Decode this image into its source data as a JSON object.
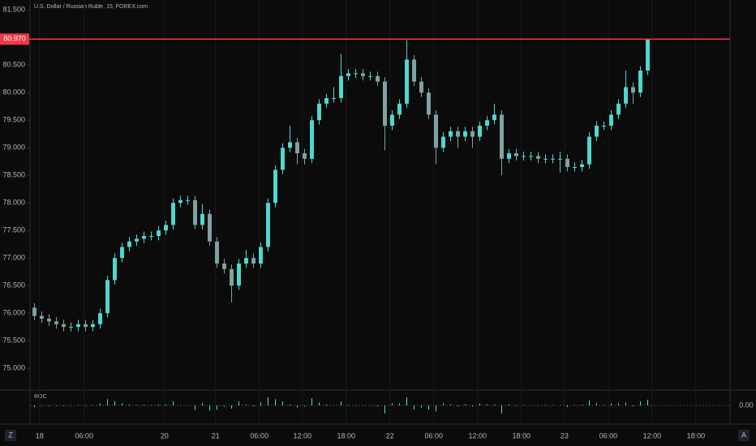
{
  "chart_data": {
    "type": "candlestick",
    "title": "U.S. Dollar / Russian Ruble, 15, FOREX.com",
    "open": [
      76.1,
      75.95,
      75.9,
      75.85,
      75.8,
      75.75,
      75.75,
      75.8,
      75.75,
      75.8,
      76.0,
      76.6,
      77.0,
      77.2,
      77.3,
      77.35,
      77.4,
      77.4,
      77.5,
      77.6,
      78.0,
      78.05,
      78.05,
      77.6,
      77.8,
      77.3,
      76.9,
      76.8,
      76.5,
      76.9,
      77.0,
      76.9,
      77.2,
      78.0,
      78.6,
      79.0,
      79.1,
      78.9,
      78.8,
      79.5,
      79.8,
      79.9,
      79.9,
      80.3,
      80.35,
      80.35,
      80.3,
      80.3,
      80.2,
      79.4,
      79.6,
      79.8,
      80.6,
      80.2,
      80.0,
      79.6,
      79.0,
      79.2,
      79.3,
      79.2,
      79.3,
      79.2,
      79.4,
      79.5,
      79.6,
      78.8,
      78.9,
      78.85,
      78.85,
      78.85,
      78.8,
      78.8,
      78.8,
      78.8,
      78.65,
      78.65,
      78.7,
      79.2,
      79.4,
      79.4,
      79.6,
      79.8,
      80.1,
      80.0,
      80.4
    ],
    "high": [
      76.18,
      76.03,
      75.98,
      75.93,
      75.88,
      75.83,
      75.88,
      75.88,
      75.88,
      76.08,
      76.68,
      77.08,
      77.28,
      77.38,
      77.43,
      77.48,
      77.48,
      77.58,
      77.68,
      78.08,
      78.13,
      78.13,
      78.13,
      77.98,
      77.88,
      77.38,
      76.98,
      76.88,
      76.98,
      77.15,
      77.08,
      77.28,
      78.08,
      78.68,
      79.08,
      79.4,
      79.18,
      78.98,
      79.58,
      79.88,
      79.98,
      80.1,
      80.7,
      80.43,
      80.43,
      80.43,
      80.38,
      80.38,
      80.28,
      79.68,
      79.88,
      80.95,
      80.68,
      80.28,
      80.08,
      79.68,
      79.28,
      79.38,
      79.38,
      79.38,
      79.38,
      79.48,
      79.58,
      79.8,
      79.68,
      78.98,
      78.98,
      78.93,
      78.93,
      78.93,
      78.88,
      78.88,
      78.93,
      78.88,
      78.73,
      78.78,
      79.28,
      79.48,
      79.48,
      79.68,
      79.88,
      80.4,
      80.18,
      80.48,
      80.97
    ],
    "low": [
      75.87,
      75.82,
      75.77,
      75.72,
      75.67,
      75.67,
      75.67,
      75.67,
      75.67,
      75.72,
      75.92,
      76.52,
      76.92,
      77.12,
      77.22,
      77.27,
      77.32,
      77.32,
      77.42,
      77.52,
      77.92,
      77.97,
      77.52,
      77.52,
      77.22,
      76.82,
      76.72,
      76.2,
      76.42,
      76.82,
      76.82,
      76.82,
      77.12,
      77.92,
      78.52,
      78.92,
      78.7,
      78.7,
      78.72,
      79.42,
      79.72,
      79.82,
      79.82,
      80.22,
      80.27,
      80.22,
      80.22,
      80.12,
      78.95,
      79.32,
      79.52,
      79.72,
      80.12,
      79.92,
      79.52,
      78.7,
      78.92,
      79.12,
      79.0,
      79.12,
      79.0,
      79.12,
      79.32,
      79.42,
      78.5,
      78.72,
      78.77,
      78.77,
      78.77,
      78.72,
      78.72,
      78.72,
      78.55,
      78.57,
      78.57,
      78.57,
      78.62,
      79.12,
      79.32,
      79.32,
      79.52,
      79.72,
      79.8,
      79.92,
      80.32
    ],
    "close": [
      75.95,
      75.9,
      75.85,
      75.8,
      75.75,
      75.75,
      75.8,
      75.75,
      75.8,
      76.0,
      76.6,
      77.0,
      77.2,
      77.3,
      77.35,
      77.4,
      77.4,
      77.5,
      77.6,
      78.0,
      78.05,
      78.05,
      77.6,
      77.8,
      77.3,
      76.9,
      76.8,
      76.5,
      76.9,
      77.0,
      76.9,
      77.2,
      78.0,
      78.6,
      79.0,
      79.1,
      78.9,
      78.8,
      79.5,
      79.8,
      79.9,
      79.9,
      80.3,
      80.35,
      80.35,
      80.3,
      80.3,
      80.2,
      79.4,
      79.6,
      79.8,
      80.6,
      80.2,
      80.0,
      79.6,
      79.0,
      79.2,
      79.3,
      79.2,
      79.3,
      79.2,
      79.4,
      79.5,
      79.6,
      78.8,
      78.9,
      78.85,
      78.85,
      78.85,
      78.8,
      78.8,
      78.8,
      78.8,
      78.65,
      78.65,
      78.7,
      79.2,
      79.4,
      79.4,
      79.6,
      79.8,
      80.1,
      80.0,
      80.4,
      80.97
    ],
    "up_color": "#4fd8cf",
    "down_color": "#7fa3a1",
    "ylim": [
      74.62,
      81.68
    ],
    "yticks": [
      {
        "value": 81.5,
        "label": "81.500"
      },
      {
        "value": 81,
        "label": "81.000"
      },
      {
        "value": 80.5,
        "label": "80.500"
      },
      {
        "value": 80,
        "label": "80.000"
      },
      {
        "value": 79.5,
        "label": "79.500"
      },
      {
        "value": 79,
        "label": "79.000"
      },
      {
        "value": 78.5,
        "label": "78.500"
      },
      {
        "value": 78,
        "label": "78.000"
      },
      {
        "value": 77.5,
        "label": "77.500"
      },
      {
        "value": 77,
        "label": "77.000"
      },
      {
        "value": 76.5,
        "label": "76.500"
      },
      {
        "value": 76,
        "label": "76.000"
      },
      {
        "value": 75.5,
        "label": "75.500"
      },
      {
        "value": 75,
        "label": "75.000"
      }
    ],
    "xlim": [
      -0.5,
      95.5
    ],
    "xticks": [
      {
        "value": 0.7,
        "label": "18"
      },
      {
        "value": 6.8,
        "label": "06:00"
      },
      {
        "value": 17.8,
        "label": "20"
      },
      {
        "value": 24.8,
        "label": "21"
      },
      {
        "value": 30.8,
        "label": "06:00"
      },
      {
        "value": 36.7,
        "label": "12:00"
      },
      {
        "value": 42.7,
        "label": "18:00"
      },
      {
        "value": 48.7,
        "label": "22"
      },
      {
        "value": 54.7,
        "label": "06:00"
      },
      {
        "value": 60.7,
        "label": "12:00"
      },
      {
        "value": 66.7,
        "label": "18:00"
      },
      {
        "value": 72.6,
        "label": "23"
      },
      {
        "value": 78.6,
        "label": "06:00"
      },
      {
        "value": 84.6,
        "label": "12:00"
      },
      {
        "value": 90.6,
        "label": "18:00"
      }
    ],
    "price_line": {
      "value": 80.97,
      "label": "80.970",
      "color": "#f23645"
    },
    "indicator": {
      "name": "ROC",
      "color": "#4fd8cf",
      "ylim": [
        -1.6,
        1.6
      ],
      "yticks": [
        {
          "value": 0,
          "label": "0.00"
        }
      ],
      "values": [
        -0.19,
        -0.06,
        -0.06,
        -0.06,
        -0.06,
        0,
        0.06,
        -0.06,
        0.06,
        0.26,
        0.78,
        0.52,
        0.26,
        0.13,
        0.06,
        0.06,
        0,
        0.13,
        0.13,
        0.52,
        0.06,
        0,
        -0.58,
        0.26,
        -0.64,
        -0.52,
        -0.13,
        -0.39,
        0.52,
        0.13,
        -0.13,
        0.39,
        1.02,
        0.77,
        0.51,
        0.13,
        -0.25,
        -0.13,
        0.89,
        0.38,
        0.13,
        0,
        0.5,
        0.06,
        0,
        -0.06,
        0,
        -0.12,
        -1.0,
        0.25,
        0.25,
        1.0,
        -0.5,
        -0.25,
        -0.5,
        -0.75,
        0.25,
        0.13,
        -0.13,
        0.13,
        -0.13,
        0.25,
        0.13,
        0.13,
        -1.0,
        0.13,
        -0.06,
        0,
        0,
        -0.06,
        0,
        0,
        0,
        -0.19,
        0,
        0.06,
        0.64,
        0.25,
        0,
        0.25,
        0.25,
        0.38,
        -0.12,
        0.5,
        0.71
      ]
    },
    "buttons": [
      "Z",
      "A"
    ]
  }
}
